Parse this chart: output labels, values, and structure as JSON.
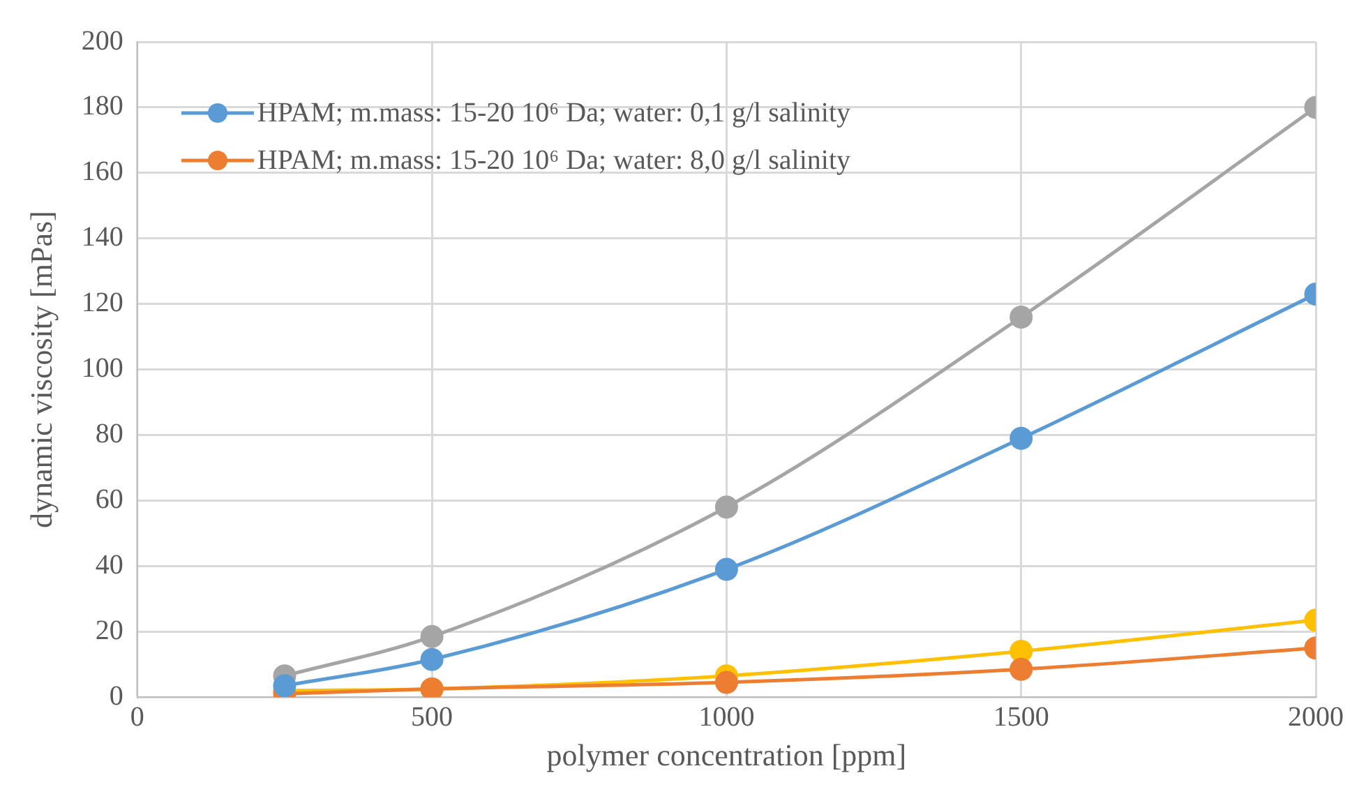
{
  "chart_data": {
    "type": "line",
    "xlabel": "polymer concentration [ppm]",
    "ylabel": "dynamic viscosity [mPas]",
    "x": [
      250,
      500,
      1000,
      1500,
      2000
    ],
    "series": [
      {
        "name": "HPAM; m.mass: 15-20 10⁶ Da; water: 0,1 g/l salinity",
        "color": "#5b9bd5",
        "values": [
          3.5,
          11.5,
          39,
          79,
          123
        ]
      },
      {
        "name": "HPAM; m.mass: 15-20 10⁶ Da; water: 8,0 g/l salinity",
        "color": "#ed7d31",
        "values": [
          1,
          2.5,
          4.5,
          8.5,
          15
        ]
      },
      {
        "color": "#a5a5a5",
        "values": [
          6.5,
          18.5,
          58,
          116,
          180
        ]
      },
      {
        "color": "#ffc000",
        "values": [
          2,
          2.5,
          6.5,
          14,
          23.5
        ]
      }
    ],
    "xlim": [
      0,
      2000
    ],
    "xticks": [
      0,
      500,
      1000,
      1500,
      2000
    ],
    "ylim": [
      0,
      200
    ],
    "yticks": [
      0,
      20,
      40,
      60,
      80,
      100,
      120,
      140,
      160,
      180,
      200
    ],
    "grid": true,
    "legend": "top left",
    "marker": "circle",
    "line_style": "solid"
  }
}
